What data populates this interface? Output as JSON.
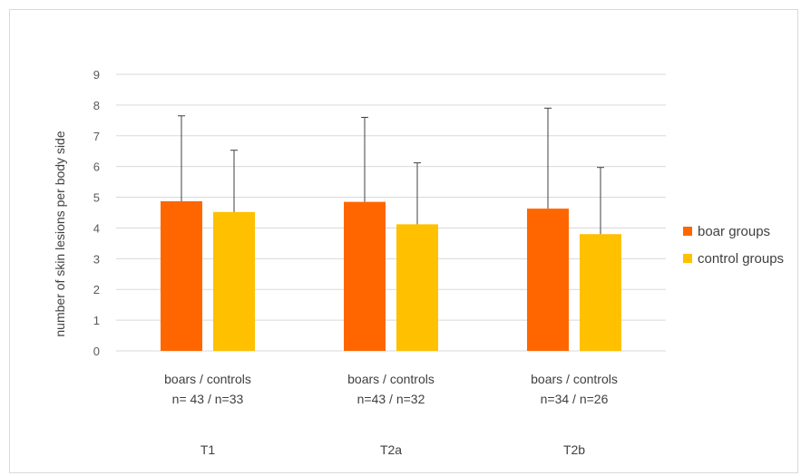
{
  "chart_data": {
    "type": "bar",
    "ylabel": "number of skin lesions per body side",
    "ylim": [
      0,
      9
    ],
    "yticks": [
      "0",
      "1",
      "2",
      "3",
      "4",
      "5",
      "6",
      "7",
      "8",
      "9"
    ],
    "grid": true,
    "legend_position": "right",
    "categories": [
      {
        "line1": "boars / controls",
        "line2": "n= 43 / n=33",
        "group": "T1"
      },
      {
        "line1": "boars / controls",
        "line2": "n=43 / n=32",
        "group": "T2a"
      },
      {
        "line1": "boars / controls",
        "line2": "n=34 / n=26",
        "group": "T2b"
      }
    ],
    "series": [
      {
        "name": "boar groups",
        "color": "#ff6600",
        "values": [
          4.87,
          4.85,
          4.63
        ],
        "error_upper": [
          7.65,
          7.6,
          7.9
        ]
      },
      {
        "name": "control groups",
        "color": "#ffc000",
        "values": [
          4.52,
          4.12,
          3.8
        ],
        "error_upper": [
          6.53,
          6.12,
          5.97
        ]
      }
    ]
  }
}
